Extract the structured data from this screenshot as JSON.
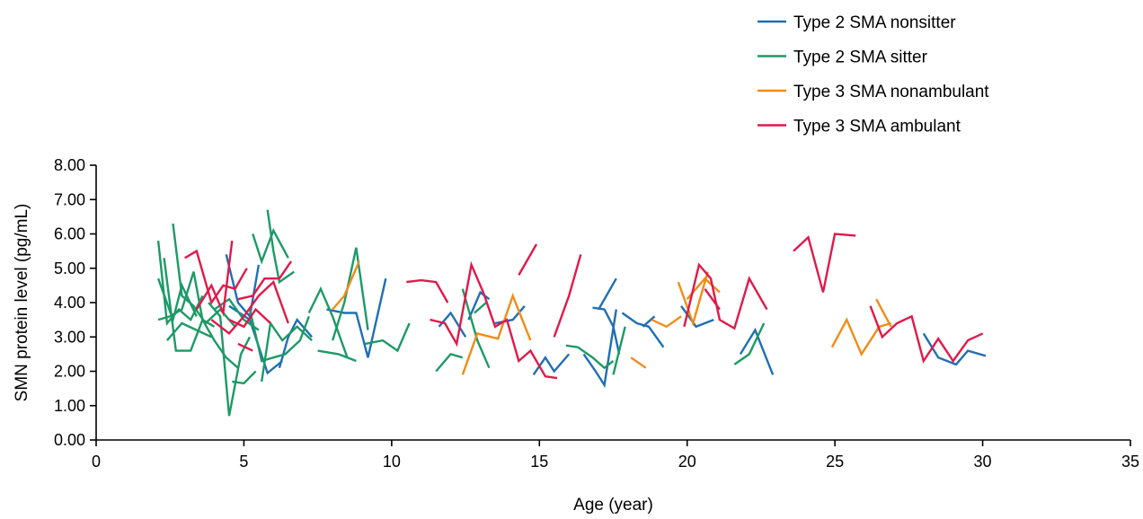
{
  "chart_data": {
    "type": "line",
    "title": "",
    "xlabel": "Age (year)",
    "ylabel": "SMN protein level (pg/mL)",
    "xlim": [
      0,
      35
    ],
    "ylim": [
      0,
      8
    ],
    "xticks": [
      0,
      5,
      10,
      15,
      20,
      25,
      30,
      35
    ],
    "xtick_labels": [
      "0",
      "5",
      "10",
      "15",
      "20",
      "25",
      "30",
      "35"
    ],
    "yticks": [
      0,
      1,
      2,
      3,
      4,
      5,
      6,
      7,
      8
    ],
    "ytick_labels": [
      "0.00",
      "1.00",
      "2.00",
      "3.00",
      "4.00",
      "5.00",
      "6.00",
      "7.00",
      "8.00"
    ],
    "grid": false,
    "legend_position": "top-right",
    "series": [
      {
        "name": "Type 2 SMA nonsitter",
        "color": "#1f6fb4",
        "trajectories": [
          [
            [
              4.4,
              5.4
            ],
            [
              4.8,
              4.0
            ],
            [
              5.2,
              3.6
            ],
            [
              5.5,
              5.1
            ]
          ],
          [
            [
              4.5,
              3.9
            ],
            [
              5.2,
              3.5
            ],
            [
              5.8,
              1.95
            ],
            [
              6.3,
              2.3
            ]
          ],
          [
            [
              6.2,
              2.1
            ],
            [
              6.5,
              3.0
            ],
            [
              6.8,
              3.5
            ],
            [
              7.3,
              3.0
            ]
          ],
          [
            [
              7.8,
              3.8
            ],
            [
              8.4,
              3.7
            ],
            [
              8.8,
              3.7
            ],
            [
              9.2,
              2.4
            ],
            [
              9.8,
              4.7
            ]
          ],
          [
            [
              11.6,
              3.3
            ],
            [
              12.0,
              3.7
            ],
            [
              12.5,
              3.0
            ]
          ],
          [
            [
              12.6,
              3.5
            ],
            [
              13.0,
              4.3
            ],
            [
              13.3,
              4.1
            ]
          ],
          [
            [
              13.5,
              3.4
            ],
            [
              14.1,
              3.5
            ],
            [
              14.5,
              3.9
            ]
          ],
          [
            [
              14.8,
              1.9
            ],
            [
              15.2,
              2.4
            ],
            [
              15.5,
              2.0
            ],
            [
              16.0,
              2.5
            ]
          ],
          [
            [
              16.5,
              2.5
            ],
            [
              16.9,
              2.0
            ],
            [
              17.2,
              1.6
            ],
            [
              17.6,
              3.8
            ]
          ],
          [
            [
              16.8,
              3.85
            ],
            [
              17.2,
              3.8
            ],
            [
              17.5,
              3.3
            ],
            [
              17.7,
              2.5
            ]
          ],
          [
            [
              17.0,
              3.8
            ],
            [
              17.6,
              4.7
            ]
          ],
          [
            [
              17.8,
              3.7
            ],
            [
              18.3,
              3.4
            ],
            [
              18.7,
              3.3
            ],
            [
              19.2,
              2.7
            ]
          ],
          [
            [
              18.5,
              3.3
            ],
            [
              18.9,
              3.6
            ]
          ],
          [
            [
              19.8,
              3.9
            ],
            [
              20.3,
              3.3
            ],
            [
              20.9,
              3.5
            ]
          ],
          [
            [
              21.8,
              2.5
            ],
            [
              22.3,
              3.2
            ],
            [
              22.9,
              1.9
            ]
          ],
          [
            [
              28.0,
              3.1
            ],
            [
              28.5,
              2.4
            ],
            [
              29.1,
              2.2
            ],
            [
              29.5,
              2.6
            ],
            [
              30.1,
              2.45
            ]
          ]
        ]
      },
      {
        "name": "Type 2 SMA sitter",
        "color": "#1c9a66",
        "trajectories": [
          [
            [
              2.1,
              5.8
            ],
            [
              2.4,
              3.4
            ],
            [
              2.8,
              3.8
            ],
            [
              3.2,
              3.5
            ],
            [
              3.6,
              4.2
            ]
          ],
          [
            [
              2.1,
              4.7
            ],
            [
              2.6,
              3.5
            ],
            [
              2.9,
              4.5
            ],
            [
              3.4,
              3.6
            ]
          ],
          [
            [
              2.3,
              5.3
            ],
            [
              2.7,
              2.6
            ],
            [
              3.2,
              2.6
            ],
            [
              3.6,
              3.5
            ],
            [
              4.0,
              3.3
            ]
          ],
          [
            [
              2.6,
              6.3
            ],
            [
              2.9,
              4.2
            ],
            [
              3.3,
              3.9
            ],
            [
              3.7,
              3.4
            ],
            [
              4.2,
              3.8
            ],
            [
              4.7,
              3.3
            ]
          ],
          [
            [
              2.1,
              3.5
            ],
            [
              2.5,
              3.6
            ],
            [
              2.9,
              3.8
            ],
            [
              3.3,
              4.9
            ],
            [
              3.6,
              3.5
            ],
            [
              4.0,
              2.9
            ],
            [
              4.4,
              2.4
            ],
            [
              4.8,
              2.1
            ]
          ],
          [
            [
              2.4,
              2.9
            ],
            [
              2.9,
              3.4
            ],
            [
              3.4,
              3.2
            ],
            [
              3.9,
              3.0
            ]
          ],
          [
            [
              3.8,
              4.0
            ],
            [
              4.2,
              3.6
            ],
            [
              4.5,
              0.7
            ],
            [
              4.9,
              2.5
            ],
            [
              5.2,
              3.0
            ]
          ],
          [
            [
              4.0,
              3.8
            ],
            [
              4.5,
              4.1
            ],
            [
              5.0,
              3.5
            ],
            [
              5.5,
              3.2
            ]
          ],
          [
            [
              4.6,
              1.7
            ],
            [
              5.0,
              1.65
            ],
            [
              5.4,
              2.0
            ]
          ],
          [
            [
              5.2,
              3.8
            ],
            [
              5.6,
              2.3
            ],
            [
              6.0,
              2.4
            ],
            [
              6.4,
              2.5
            ],
            [
              6.9,
              2.9
            ],
            [
              7.2,
              3.6
            ]
          ],
          [
            [
              5.3,
              6.0
            ],
            [
              5.6,
              5.2
            ],
            [
              6.0,
              6.1
            ],
            [
              6.5,
              5.3
            ]
          ],
          [
            [
              5.8,
              6.7
            ],
            [
              6.0,
              5.5
            ],
            [
              6.2,
              4.6
            ],
            [
              6.7,
              4.9
            ]
          ],
          [
            [
              5.6,
              1.7
            ],
            [
              5.9,
              3.4
            ],
            [
              6.3,
              2.9
            ],
            [
              6.8,
              3.3
            ],
            [
              7.3,
              2.9
            ]
          ],
          [
            [
              7.2,
              3.7
            ],
            [
              7.6,
              4.4
            ],
            [
              8.0,
              3.6
            ],
            [
              8.5,
              2.4
            ]
          ],
          [
            [
              8.0,
              2.9
            ],
            [
              8.4,
              4.0
            ],
            [
              8.8,
              5.6
            ],
            [
              9.2,
              3.2
            ]
          ],
          [
            [
              7.5,
              2.6
            ],
            [
              8.2,
              2.5
            ],
            [
              8.8,
              2.3
            ]
          ],
          [
            [
              9.1,
              2.8
            ],
            [
              9.7,
              2.9
            ],
            [
              10.2,
              2.6
            ],
            [
              10.6,
              3.4
            ]
          ],
          [
            [
              11.5,
              2.0
            ],
            [
              12.0,
              2.5
            ],
            [
              12.4,
              2.4
            ]
          ],
          [
            [
              12.4,
              4.4
            ],
            [
              12.9,
              2.9
            ],
            [
              13.3,
              2.1
            ]
          ],
          [
            [
              12.8,
              3.7
            ],
            [
              13.2,
              4.0
            ]
          ],
          [
            [
              15.9,
              2.75
            ],
            [
              16.3,
              2.7
            ],
            [
              16.8,
              2.4
            ],
            [
              17.2,
              2.1
            ],
            [
              17.5,
              2.3
            ]
          ],
          [
            [
              17.5,
              1.9
            ],
            [
              17.9,
              3.3
            ]
          ],
          [
            [
              21.6,
              2.2
            ],
            [
              22.1,
              2.5
            ],
            [
              22.6,
              3.4
            ]
          ]
        ]
      },
      {
        "name": "Type 3 SMA nonambulant",
        "color": "#f08c17",
        "trajectories": [
          [
            [
              8.0,
              3.8
            ],
            [
              8.4,
              4.2
            ],
            [
              8.9,
              5.2
            ]
          ],
          [
            [
              12.4,
              1.9
            ],
            [
              12.9,
              3.1
            ],
            [
              13.6,
              2.95
            ],
            [
              14.1,
              4.2
            ],
            [
              14.7,
              2.9
            ]
          ],
          [
            [
              18.1,
              2.4
            ],
            [
              18.6,
              2.1
            ]
          ],
          [
            [
              18.8,
              3.5
            ],
            [
              19.3,
              3.3
            ],
            [
              19.8,
              3.6
            ]
          ],
          [
            [
              19.7,
              4.6
            ],
            [
              20.2,
              3.4
            ],
            [
              20.7,
              4.9
            ]
          ],
          [
            [
              20.0,
              4.1
            ],
            [
              20.6,
              4.7
            ],
            [
              21.1,
              4.3
            ]
          ],
          [
            [
              24.9,
              2.7
            ],
            [
              25.4,
              3.5
            ],
            [
              25.9,
              2.5
            ],
            [
              26.5,
              3.3
            ],
            [
              26.9,
              3.4
            ]
          ],
          [
            [
              26.4,
              4.1
            ],
            [
              26.9,
              3.3
            ]
          ]
        ]
      },
      {
        "name": "Type 3 SMA ambulant",
        "color": "#e0194b",
        "trajectories": [
          [
            [
              3.0,
              5.3
            ],
            [
              3.4,
              5.5
            ],
            [
              3.9,
              4.0
            ],
            [
              4.3,
              4.5
            ],
            [
              4.7,
              4.4
            ],
            [
              5.1,
              5.0
            ]
          ],
          [
            [
              3.4,
              3.8
            ],
            [
              3.9,
              4.5
            ],
            [
              4.3,
              3.7
            ],
            [
              4.6,
              5.8
            ]
          ],
          [
            [
              3.9,
              3.5
            ],
            [
              4.5,
              3.1
            ],
            [
              5.0,
              3.6
            ],
            [
              5.5,
              4.2
            ],
            [
              6.0,
              4.6
            ],
            [
              6.5,
              3.4
            ]
          ],
          [
            [
              4.8,
              4.1
            ],
            [
              5.3,
              4.2
            ],
            [
              5.7,
              4.7
            ],
            [
              6.2,
              4.7
            ],
            [
              6.6,
              5.2
            ]
          ],
          [
            [
              4.5,
              3.5
            ],
            [
              5.0,
              3.3
            ],
            [
              5.4,
              3.8
            ],
            [
              5.9,
              3.4
            ]
          ],
          [
            [
              4.8,
              2.8
            ],
            [
              5.3,
              2.6
            ]
          ],
          [
            [
              10.5,
              4.6
            ],
            [
              11.0,
              4.65
            ],
            [
              11.5,
              4.6
            ],
            [
              11.9,
              4.0
            ]
          ],
          [
            [
              11.3,
              3.5
            ],
            [
              11.8,
              3.4
            ],
            [
              12.2,
              2.8
            ],
            [
              12.7,
              5.1
            ],
            [
              13.1,
              4.3
            ],
            [
              13.5,
              3.3
            ],
            [
              13.9,
              3.5
            ],
            [
              14.3,
              2.3
            ],
            [
              14.7,
              2.6
            ],
            [
              15.2,
              1.85
            ],
            [
              15.6,
              1.8
            ]
          ],
          [
            [
              14.3,
              4.8
            ],
            [
              14.9,
              5.7
            ]
          ],
          [
            [
              15.5,
              3.0
            ],
            [
              16.0,
              4.2
            ],
            [
              16.4,
              5.4
            ]
          ],
          [
            [
              19.9,
              3.3
            ],
            [
              20.4,
              5.1
            ],
            [
              20.8,
              4.7
            ],
            [
              21.1,
              3.5
            ],
            [
              21.6,
              3.25
            ],
            [
              22.1,
              4.7
            ],
            [
              22.7,
              3.8
            ]
          ],
          [
            [
              20.6,
              4.4
            ],
            [
              21.1,
              3.8
            ]
          ],
          [
            [
              23.6,
              5.5
            ],
            [
              24.1,
              5.9
            ],
            [
              24.6,
              4.3
            ],
            [
              25.0,
              6.0
            ],
            [
              25.7,
              5.95
            ]
          ],
          [
            [
              26.2,
              3.9
            ],
            [
              26.6,
              3.0
            ],
            [
              27.1,
              3.4
            ],
            [
              27.6,
              3.6
            ],
            [
              28.0,
              2.3
            ],
            [
              28.5,
              2.95
            ],
            [
              29.0,
              2.3
            ],
            [
              29.5,
              2.9
            ],
            [
              30.0,
              3.1
            ]
          ]
        ]
      }
    ]
  }
}
